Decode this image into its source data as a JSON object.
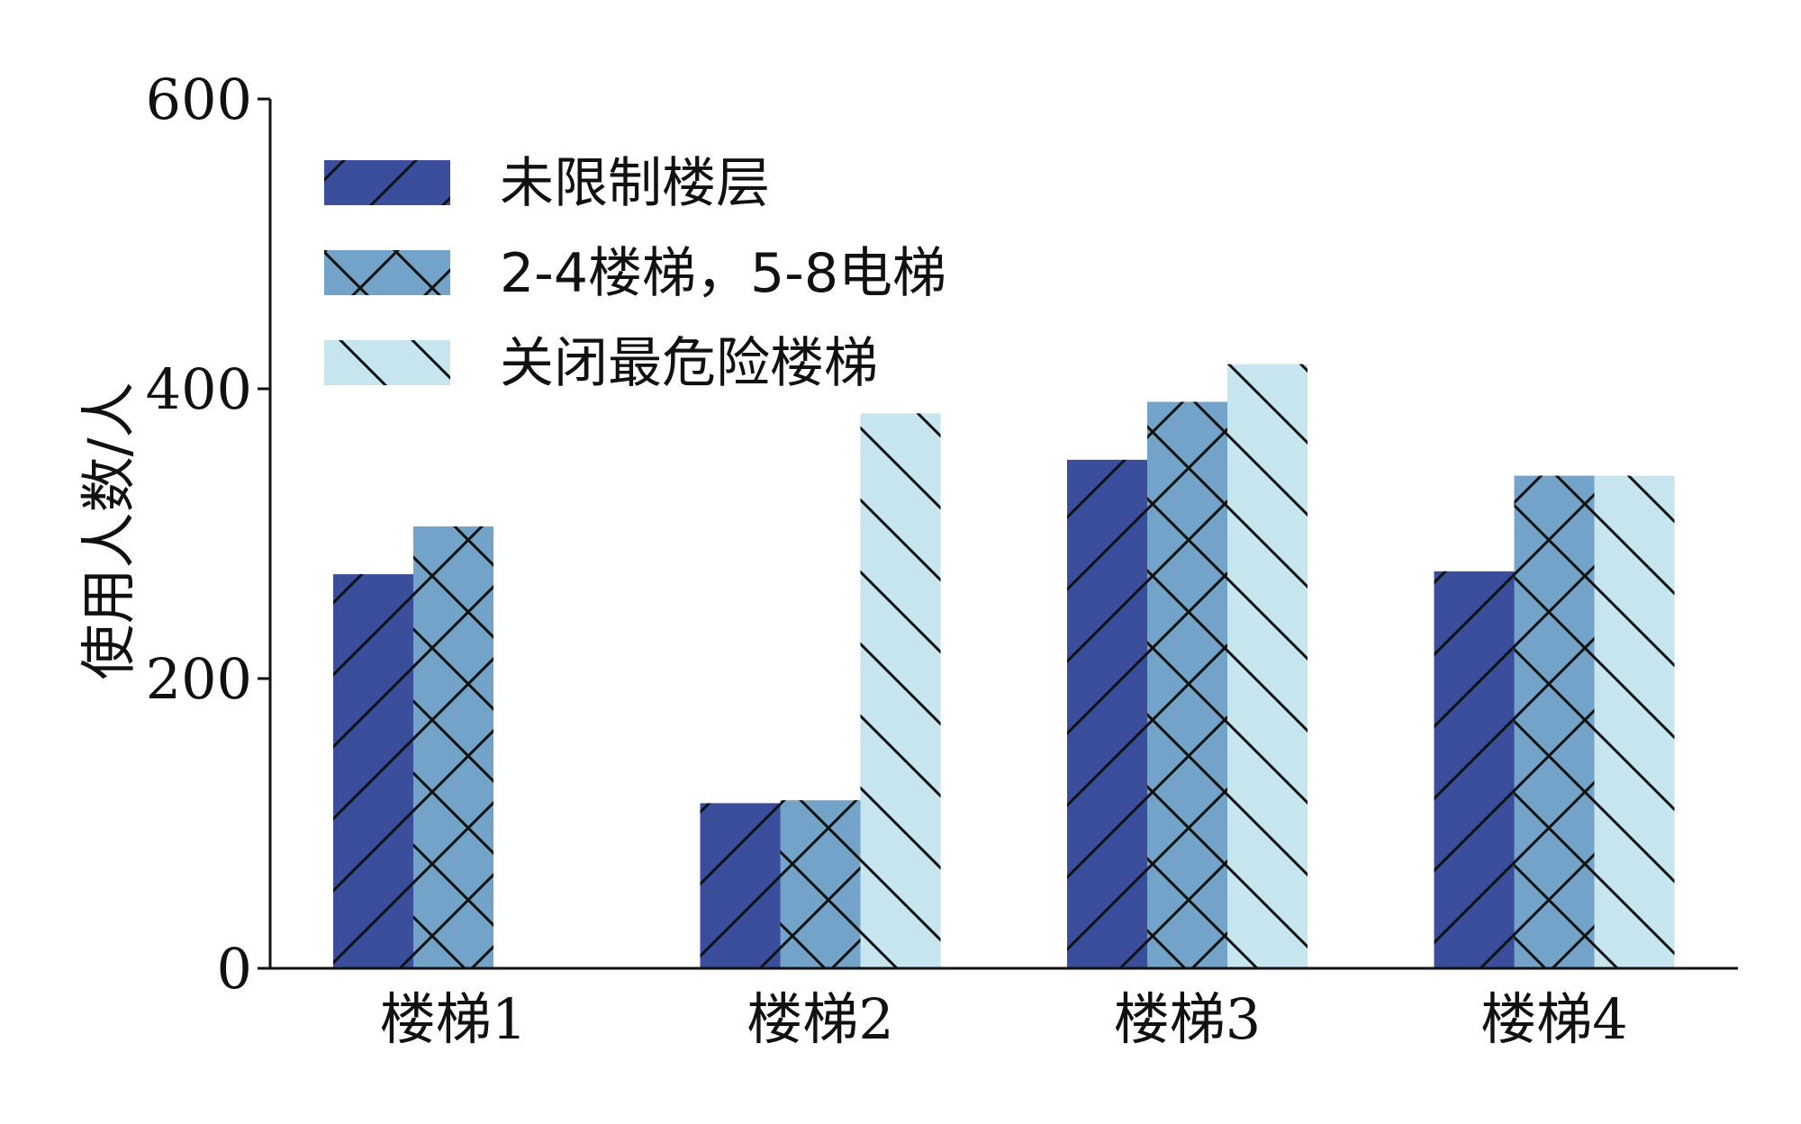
{
  "chart_data": {
    "type": "bar",
    "title": "",
    "xlabel": "",
    "ylabel": "使用人数/人",
    "ylim": [
      0,
      600
    ],
    "yticks": [
      0,
      200,
      400,
      600
    ],
    "categories": [
      "楼梯1",
      "楼梯2",
      "楼梯3",
      "楼梯4"
    ],
    "legend_position": "top-left",
    "grid": false,
    "series": [
      {
        "name": "未限制楼层",
        "color": "#3a4e9c",
        "hatch": "forward-diagonal",
        "values": [
          272,
          114,
          351,
          274
        ]
      },
      {
        "name": "2-4楼梯，5-8电梯",
        "color": "#73a3c8",
        "hatch": "cross",
        "values": [
          305,
          116,
          391,
          340
        ]
      },
      {
        "name": "关闭最危险楼梯",
        "color": "#c7e5ee",
        "hatch": "back-diagonal",
        "values": [
          null,
          383,
          417,
          340
        ]
      }
    ]
  }
}
